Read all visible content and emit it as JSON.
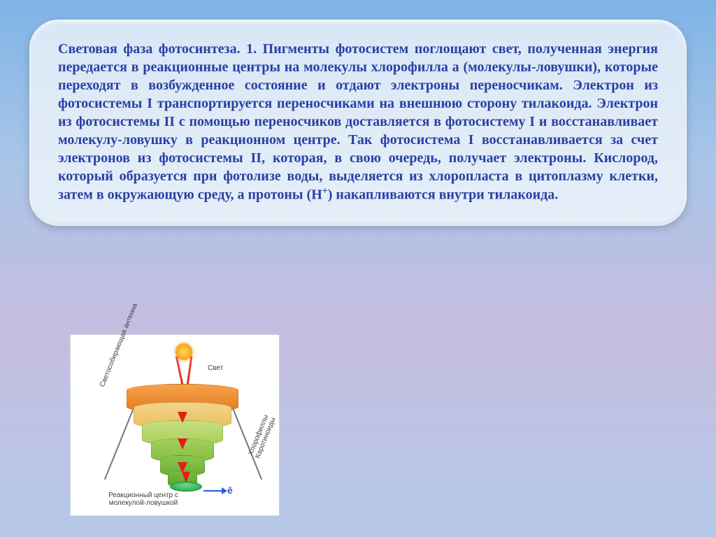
{
  "card": {
    "text_html": "Световая фаза фотосинтеза. 1.  Пигменты фотосистем поглощают свет, полученная энергия передается в реакционные центры на молекулы хлорофилла а (молекулы-ловушки), которые переходят в возбужденное состояние и отдают электроны переносчикам. Электрон из фотосистемы I транспортируется переносчиками на внешнюю сторону тилакоида. Электрон из фотосистемы II с помощью переносчиков доставляется в фотосистему I и восстанавливает молекулу-ловушку в реакционном центре. Так фотосистема I восстанавливается за счет электронов из фотосистемы II, которая, в свою очередь, получает электроны. Кислород, который образуется при фотолизе воды, выделяется из хлоропласта в цитоплазму  клетки, затем в окружающую среду, а протоны (Н<sup>+</sup>) накапливаются внутри тилакоида."
  },
  "diagram": {
    "type": "infographic",
    "background_color": "#ffffff",
    "labels": {
      "light": "Свет",
      "left_side": "Светособирающая антенна",
      "right_side": "Хлорофиллы Каротиноиды",
      "bottom": "Реакционный центр с молекулой-ловушкой",
      "electron": "ē"
    },
    "funnel_layers": [
      {
        "color_top": "#f6a24a",
        "color_bottom": "#e47a1e"
      },
      {
        "color_top": "#f4d28a",
        "color_bottom": "#e8c15f"
      },
      {
        "color_top": "#c7de82",
        "color_bottom": "#a9cf5a"
      },
      {
        "color_top": "#a3cf5f",
        "color_bottom": "#86bd3f"
      },
      {
        "color_top": "#8bc64e",
        "color_bottom": "#6bae33"
      },
      {
        "color_top": "#79bb42",
        "color_bottom": "#5da22c"
      }
    ],
    "arrow_color": "#e21f1a",
    "electron_color": "#2a5bd0",
    "disc_color": "#1a9e46",
    "sun_color": "#f5a428"
  },
  "colors": {
    "card_text": "#2940a5",
    "bg_gradient_top": "#7fb4e6",
    "bg_gradient_bottom": "#b5c8e8"
  }
}
